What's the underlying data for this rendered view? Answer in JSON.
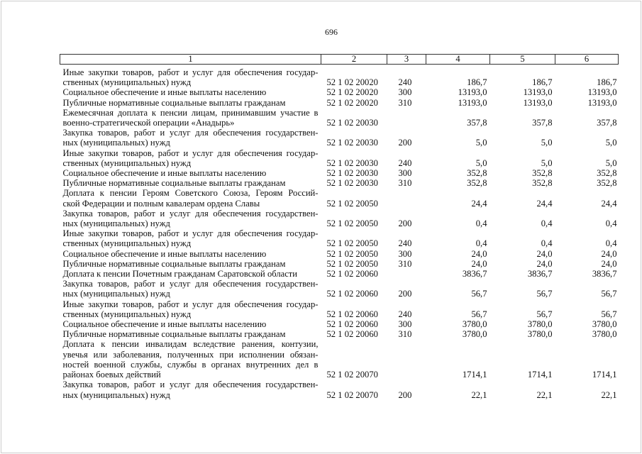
{
  "page_number": "696",
  "header": [
    "1",
    "2",
    "3",
    "4",
    "5",
    "6"
  ],
  "rows": [
    {
      "desc": [
        "Иные закупки товаров, работ и услуг для обеспечения государ-",
        "ственных (муниципальных) нужд"
      ],
      "code": "52 1 02 20020",
      "csr": "240",
      "v4": "186,7",
      "v5": "186,7",
      "v6": "186,7"
    },
    {
      "desc": [
        "Социальное обеспечение и иные выплаты населению"
      ],
      "code": "52 1 02 20020",
      "csr": "300",
      "v4": "13193,0",
      "v5": "13193,0",
      "v6": "13193,0"
    },
    {
      "desc": [
        "Публичные нормативные социальные выплаты гражданам"
      ],
      "code": "52 1 02 20020",
      "csr": "310",
      "v4": "13193,0",
      "v5": "13193,0",
      "v6": "13193,0"
    },
    {
      "desc": [
        "Ежемесячная доплата к пенсии лицам, принимавшим участие в",
        "военно-стратегической операции «Анадырь»"
      ],
      "code": "52 1 02 20030",
      "csr": "",
      "v4": "357,8",
      "v5": "357,8",
      "v6": "357,8"
    },
    {
      "desc": [
        "Закупка товаров, работ и услуг для обеспечения государствен-",
        "ных (муниципальных) нужд"
      ],
      "code": "52 1 02 20030",
      "csr": "200",
      "v4": "5,0",
      "v5": "5,0",
      "v6": "5,0"
    },
    {
      "desc": [
        "Иные закупки товаров, работ и услуг для обеспечения государ-",
        "ственных (муниципальных) нужд"
      ],
      "code": "52 1 02 20030",
      "csr": "240",
      "v4": "5,0",
      "v5": "5,0",
      "v6": "5,0"
    },
    {
      "desc": [
        "Социальное обеспечение и иные выплаты населению"
      ],
      "code": "52 1 02 20030",
      "csr": "300",
      "v4": "352,8",
      "v5": "352,8",
      "v6": "352,8"
    },
    {
      "desc": [
        "Публичные нормативные социальные выплаты гражданам"
      ],
      "code": "52 1 02 20030",
      "csr": "310",
      "v4": "352,8",
      "v5": "352,8",
      "v6": "352,8"
    },
    {
      "desc": [
        "Доплата к пенсии Героям Советского Союза, Героям Россий-",
        "ской Федерации и полным кавалерам ордена Славы"
      ],
      "code": "52 1 02 20050",
      "csr": "",
      "v4": "24,4",
      "v5": "24,4",
      "v6": "24,4"
    },
    {
      "desc": [
        "Закупка товаров, работ и услуг для обеспечения государствен-",
        "ных (муниципальных) нужд"
      ],
      "code": "52 1 02 20050",
      "csr": "200",
      "v4": "0,4",
      "v5": "0,4",
      "v6": "0,4"
    },
    {
      "desc": [
        "Иные закупки товаров, работ и услуг для обеспечения государ-",
        "ственных (муниципальных) нужд"
      ],
      "code": "52 1 02 20050",
      "csr": "240",
      "v4": "0,4",
      "v5": "0,4",
      "v6": "0,4"
    },
    {
      "desc": [
        "Социальное обеспечение и иные выплаты населению"
      ],
      "code": "52 1 02 20050",
      "csr": "300",
      "v4": "24,0",
      "v5": "24,0",
      "v6": "24,0"
    },
    {
      "desc": [
        "Публичные нормативные социальные выплаты гражданам"
      ],
      "code": "52 1 02 20050",
      "csr": "310",
      "v4": "24,0",
      "v5": "24,0",
      "v6": "24,0"
    },
    {
      "desc": [
        "Доплата к пенсии Почетным гражданам Саратовской области"
      ],
      "code": "52 1 02 20060",
      "csr": "",
      "v4": "3836,7",
      "v5": "3836,7",
      "v6": "3836,7"
    },
    {
      "desc": [
        "Закупка товаров, работ и услуг для обеспечения государствен-",
        "ных (муниципальных) нужд"
      ],
      "code": "52 1 02 20060",
      "csr": "200",
      "v4": "56,7",
      "v5": "56,7",
      "v6": "56,7"
    },
    {
      "desc": [
        "Иные закупки товаров, работ и услуг для обеспечения государ-",
        "ственных (муниципальных) нужд"
      ],
      "code": "52 1 02 20060",
      "csr": "240",
      "v4": "56,7",
      "v5": "56,7",
      "v6": "56,7"
    },
    {
      "desc": [
        "Социальное обеспечение и иные выплаты населению"
      ],
      "code": "52 1 02 20060",
      "csr": "300",
      "v4": "3780,0",
      "v5": "3780,0",
      "v6": "3780,0"
    },
    {
      "desc": [
        "Публичные нормативные социальные выплаты гражданам"
      ],
      "code": "52 1 02 20060",
      "csr": "310",
      "v4": "3780,0",
      "v5": "3780,0",
      "v6": "3780,0"
    },
    {
      "desc": [
        "Доплата к пенсии инвалидам вследствие ранения, контузии,",
        "увечья или заболевания, полученных при исполнении обязан-",
        "ностей военной службы, службы в органах внутренних дел в",
        "районах боевых действий"
      ],
      "code": "52 1 02 20070",
      "csr": "",
      "v4": "1714,1",
      "v5": "1714,1",
      "v6": "1714,1"
    },
    {
      "desc": [
        "Закупка товаров, работ и услуг для обеспечения государствен-",
        "ных (муниципальных) нужд"
      ],
      "code": "52 1 02 20070",
      "csr": "200",
      "v4": "22,1",
      "v5": "22,1",
      "v6": "22,1"
    }
  ]
}
